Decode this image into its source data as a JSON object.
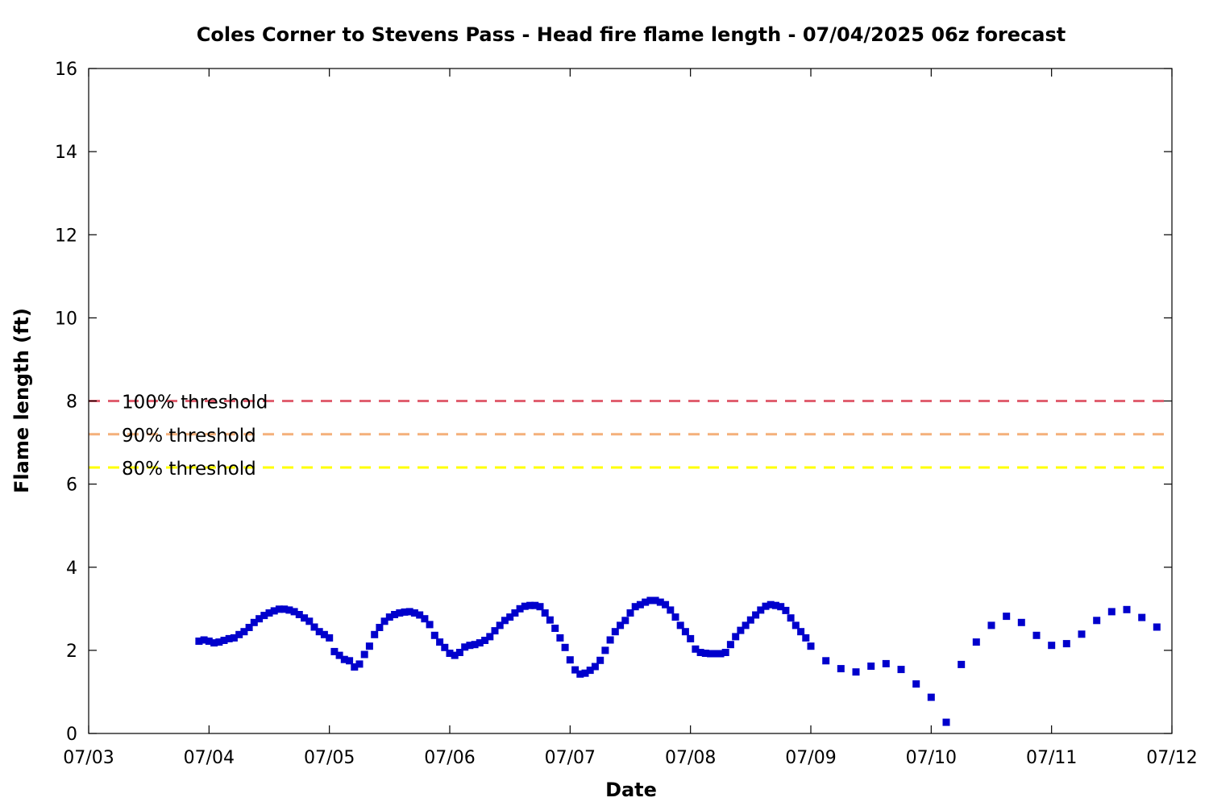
{
  "chart_data": {
    "type": "scatter",
    "title": "Coles Corner to Stevens Pass - Head fire flame length - 07/04/2025 06z forecast",
    "xlabel": "Date",
    "ylabel": "Flame length (ft)",
    "xlim": [
      "07/03",
      "07/12"
    ],
    "ylim": [
      0,
      16
    ],
    "x_ticks": [
      "07/03",
      "07/04",
      "07/05",
      "07/06",
      "07/07",
      "07/08",
      "07/09",
      "07/10",
      "07/11",
      "07/12"
    ],
    "y_ticks": [
      0,
      2,
      4,
      6,
      8,
      10,
      12,
      14,
      16
    ],
    "grid": false,
    "series": [
      {
        "color": "#0000cc",
        "marker": "square",
        "points": [
          [
            "07/03 22:00",
            2.22
          ],
          [
            "07/03 23:00",
            2.25
          ],
          [
            "07/04 00:00",
            2.22
          ],
          [
            "07/04 01:00",
            2.18
          ],
          [
            "07/04 02:00",
            2.2
          ],
          [
            "07/04 03:00",
            2.24
          ],
          [
            "07/04 04:00",
            2.28
          ],
          [
            "07/04 05:00",
            2.3
          ],
          [
            "07/04 06:00",
            2.38
          ],
          [
            "07/04 07:00",
            2.45
          ],
          [
            "07/04 08:00",
            2.55
          ],
          [
            "07/04 09:00",
            2.67
          ],
          [
            "07/04 10:00",
            2.76
          ],
          [
            "07/04 11:00",
            2.84
          ],
          [
            "07/04 12:00",
            2.9
          ],
          [
            "07/04 13:00",
            2.95
          ],
          [
            "07/04 14:00",
            2.99
          ],
          [
            "07/04 15:00",
            2.99
          ],
          [
            "07/04 16:00",
            2.97
          ],
          [
            "07/04 17:00",
            2.93
          ],
          [
            "07/04 18:00",
            2.86
          ],
          [
            "07/04 19:00",
            2.78
          ],
          [
            "07/04 20:00",
            2.7
          ],
          [
            "07/04 21:00",
            2.56
          ],
          [
            "07/04 22:00",
            2.45
          ],
          [
            "07/04 23:00",
            2.38
          ],
          [
            "07/05 00:00",
            2.3
          ],
          [
            "07/05 01:00",
            1.97
          ],
          [
            "07/05 02:00",
            1.88
          ],
          [
            "07/05 03:00",
            1.78
          ],
          [
            "07/05 04:00",
            1.75
          ],
          [
            "07/05 05:00",
            1.6
          ],
          [
            "07/05 06:00",
            1.67
          ],
          [
            "07/05 07:00",
            1.9
          ],
          [
            "07/05 08:00",
            2.1
          ],
          [
            "07/05 09:00",
            2.38
          ],
          [
            "07/05 10:00",
            2.55
          ],
          [
            "07/05 11:00",
            2.7
          ],
          [
            "07/05 12:00",
            2.8
          ],
          [
            "07/05 13:00",
            2.86
          ],
          [
            "07/05 14:00",
            2.9
          ],
          [
            "07/05 15:00",
            2.92
          ],
          [
            "07/05 16:00",
            2.93
          ],
          [
            "07/05 17:00",
            2.9
          ],
          [
            "07/05 18:00",
            2.85
          ],
          [
            "07/05 19:00",
            2.76
          ],
          [
            "07/05 20:00",
            2.62
          ],
          [
            "07/05 21:00",
            2.36
          ],
          [
            "07/05 22:00",
            2.2
          ],
          [
            "07/05 23:00",
            2.07
          ],
          [
            "07/06 00:00",
            1.93
          ],
          [
            "07/06 01:00",
            1.88
          ],
          [
            "07/06 02:00",
            1.95
          ],
          [
            "07/06 03:00",
            2.08
          ],
          [
            "07/06 04:00",
            2.12
          ],
          [
            "07/06 05:00",
            2.14
          ],
          [
            "07/06 06:00",
            2.18
          ],
          [
            "07/06 07:00",
            2.24
          ],
          [
            "07/06 08:00",
            2.33
          ],
          [
            "07/06 09:00",
            2.47
          ],
          [
            "07/06 10:00",
            2.6
          ],
          [
            "07/06 11:00",
            2.72
          ],
          [
            "07/06 12:00",
            2.8
          ],
          [
            "07/06 13:00",
            2.9
          ],
          [
            "07/06 14:00",
            3.0
          ],
          [
            "07/06 15:00",
            3.06
          ],
          [
            "07/06 16:00",
            3.08
          ],
          [
            "07/06 17:00",
            3.08
          ],
          [
            "07/06 18:00",
            3.05
          ],
          [
            "07/06 19:00",
            2.9
          ],
          [
            "07/06 20:00",
            2.73
          ],
          [
            "07/06 21:00",
            2.53
          ],
          [
            "07/06 22:00",
            2.3
          ],
          [
            "07/06 23:00",
            2.07
          ],
          [
            "07/07 00:00",
            1.77
          ],
          [
            "07/07 01:00",
            1.53
          ],
          [
            "07/07 02:00",
            1.43
          ],
          [
            "07/07 03:00",
            1.45
          ],
          [
            "07/07 04:00",
            1.52
          ],
          [
            "07/07 05:00",
            1.61
          ],
          [
            "07/07 06:00",
            1.76
          ],
          [
            "07/07 07:00",
            2.0
          ],
          [
            "07/07 08:00",
            2.25
          ],
          [
            "07/07 09:00",
            2.45
          ],
          [
            "07/07 10:00",
            2.6
          ],
          [
            "07/07 11:00",
            2.72
          ],
          [
            "07/07 12:00",
            2.9
          ],
          [
            "07/07 13:00",
            3.05
          ],
          [
            "07/07 14:00",
            3.1
          ],
          [
            "07/07 15:00",
            3.16
          ],
          [
            "07/07 16:00",
            3.2
          ],
          [
            "07/07 17:00",
            3.2
          ],
          [
            "07/07 18:00",
            3.16
          ],
          [
            "07/07 19:00",
            3.1
          ],
          [
            "07/07 20:00",
            2.97
          ],
          [
            "07/07 21:00",
            2.8
          ],
          [
            "07/07 22:00",
            2.6
          ],
          [
            "07/07 23:00",
            2.45
          ],
          [
            "07/08 00:00",
            2.28
          ],
          [
            "07/08 01:00",
            2.03
          ],
          [
            "07/08 02:00",
            1.95
          ],
          [
            "07/08 03:00",
            1.93
          ],
          [
            "07/08 04:00",
            1.92
          ],
          [
            "07/08 05:00",
            1.92
          ],
          [
            "07/08 06:00",
            1.92
          ],
          [
            "07/08 07:00",
            1.95
          ],
          [
            "07/08 08:00",
            2.14
          ],
          [
            "07/08 09:00",
            2.33
          ],
          [
            "07/08 10:00",
            2.48
          ],
          [
            "07/08 11:00",
            2.6
          ],
          [
            "07/08 12:00",
            2.73
          ],
          [
            "07/08 13:00",
            2.85
          ],
          [
            "07/08 14:00",
            2.97
          ],
          [
            "07/08 15:00",
            3.06
          ],
          [
            "07/08 16:00",
            3.1
          ],
          [
            "07/08 17:00",
            3.08
          ],
          [
            "07/08 18:00",
            3.05
          ],
          [
            "07/08 19:00",
            2.96
          ],
          [
            "07/08 20:00",
            2.78
          ],
          [
            "07/08 21:00",
            2.6
          ],
          [
            "07/08 22:00",
            2.45
          ],
          [
            "07/08 23:00",
            2.3
          ],
          [
            "07/09 00:00",
            2.1
          ],
          [
            "07/09 03:00",
            1.75
          ],
          [
            "07/09 06:00",
            1.56
          ],
          [
            "07/09 09:00",
            1.48
          ],
          [
            "07/09 12:00",
            1.62
          ],
          [
            "07/09 15:00",
            1.68
          ],
          [
            "07/09 18:00",
            1.54
          ],
          [
            "07/09 21:00",
            1.19
          ],
          [
            "07/10 00:00",
            0.87
          ],
          [
            "07/10 03:00",
            0.27
          ],
          [
            "07/10 06:00",
            1.66
          ],
          [
            "07/10 09:00",
            2.2
          ],
          [
            "07/10 12:00",
            2.6
          ],
          [
            "07/10 15:00",
            2.82
          ],
          [
            "07/10 18:00",
            2.67
          ],
          [
            "07/10 21:00",
            2.36
          ],
          [
            "07/11 00:00",
            2.12
          ],
          [
            "07/11 03:00",
            2.16
          ],
          [
            "07/11 06:00",
            2.39
          ],
          [
            "07/11 09:00",
            2.72
          ],
          [
            "07/11 12:00",
            2.93
          ],
          [
            "07/11 15:00",
            2.98
          ],
          [
            "07/11 18:00",
            2.79
          ],
          [
            "07/11 21:00",
            2.56
          ]
        ]
      }
    ],
    "thresholds": [
      {
        "label": "100% threshold",
        "value": 8.0,
        "color": "#e06070"
      },
      {
        "label": "90% threshold",
        "value": 7.2,
        "color": "#f4b07a"
      },
      {
        "label": "80% threshold",
        "value": 6.4,
        "color": "#ffff00"
      }
    ]
  }
}
